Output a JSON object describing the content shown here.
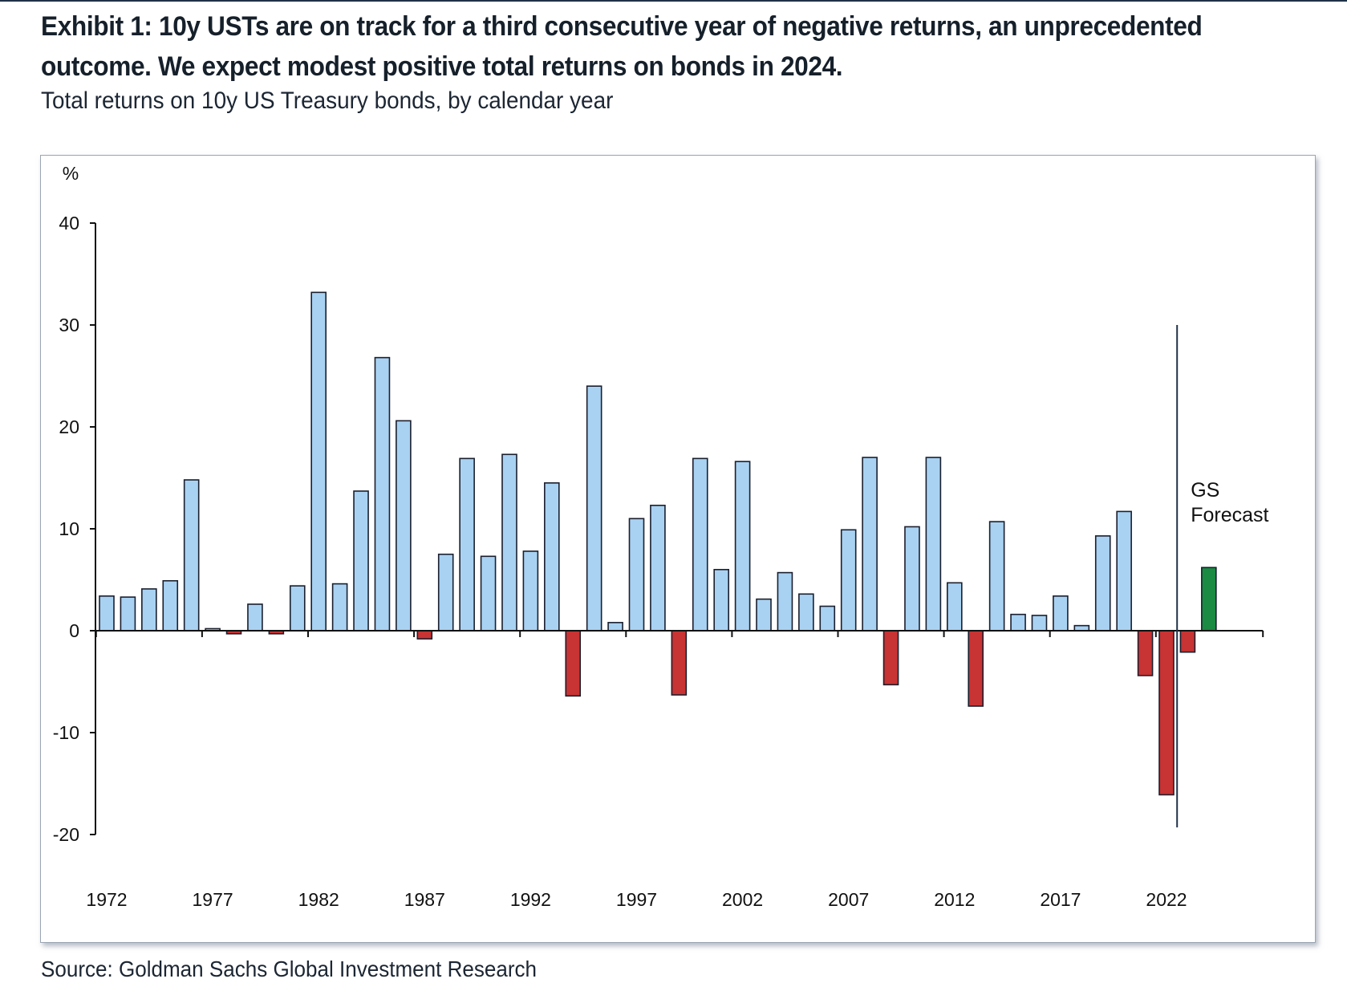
{
  "header": {
    "title": "Exhibit 1: 10y USTs are on track for a third consecutive year of negative returns, an unprecedented outcome. We expect modest positive total returns on bonds in 2024.",
    "subtitle": "Total returns on 10y US Treasury bonds, by calendar year"
  },
  "footer": {
    "source": "Source: Goldman Sachs Global Investment Research"
  },
  "chart_data": {
    "type": "bar",
    "title": "",
    "xlabel": "",
    "ylabel": "%",
    "ylim": [
      -20,
      40
    ],
    "yticks": [
      -20,
      -10,
      0,
      10,
      20,
      30,
      40
    ],
    "xtick_labels": [
      "1972",
      "1977",
      "1982",
      "1987",
      "1992",
      "1997",
      "2002",
      "2007",
      "2012",
      "2017",
      "2022"
    ],
    "grid": false,
    "annotation": {
      "text_lines": [
        "GS",
        "Forecast"
      ],
      "x": 2022.5
    },
    "colors": {
      "positive": "#a9d2f2",
      "negative": "#c83333",
      "forecast": "#1b8a43",
      "outline": "#1a1f2e"
    },
    "categories": [
      1972,
      1973,
      1974,
      1975,
      1976,
      1977,
      1978,
      1979,
      1980,
      1981,
      1982,
      1983,
      1984,
      1985,
      1986,
      1987,
      1988,
      1989,
      1990,
      1991,
      1992,
      1993,
      1994,
      1995,
      1996,
      1997,
      1998,
      1999,
      2000,
      2001,
      2002,
      2003,
      2004,
      2005,
      2006,
      2007,
      2008,
      2009,
      2010,
      2011,
      2012,
      2013,
      2014,
      2015,
      2016,
      2017,
      2018,
      2019,
      2020,
      2021,
      2022,
      2023,
      2024
    ],
    "values": [
      3.4,
      3.3,
      4.1,
      4.9,
      14.8,
      0.2,
      -0.3,
      2.6,
      -0.3,
      4.4,
      33.2,
      4.6,
      13.7,
      26.8,
      20.6,
      -0.8,
      7.5,
      16.9,
      7.3,
      17.3,
      7.8,
      14.5,
      -6.4,
      24.0,
      0.8,
      11.0,
      12.3,
      -6.3,
      16.9,
      6.0,
      16.6,
      3.1,
      5.7,
      3.6,
      2.4,
      9.9,
      17.0,
      -5.3,
      10.2,
      17.0,
      4.7,
      -7.4,
      10.7,
      1.6,
      1.5,
      3.4,
      0.5,
      9.3,
      11.7,
      -4.4,
      -16.1,
      -2.1,
      6.2
    ],
    "bar_kind": [
      "actual",
      "actual",
      "actual",
      "actual",
      "actual",
      "actual",
      "actual",
      "actual",
      "actual",
      "actual",
      "actual",
      "actual",
      "actual",
      "actual",
      "actual",
      "actual",
      "actual",
      "actual",
      "actual",
      "actual",
      "actual",
      "actual",
      "actual",
      "actual",
      "actual",
      "actual",
      "actual",
      "actual",
      "actual",
      "actual",
      "actual",
      "actual",
      "actual",
      "actual",
      "actual",
      "actual",
      "actual",
      "actual",
      "actual",
      "actual",
      "actual",
      "actual",
      "actual",
      "actual",
      "actual",
      "actual",
      "actual",
      "actual",
      "actual",
      "actual",
      "actual",
      "actual",
      "forecast"
    ]
  }
}
